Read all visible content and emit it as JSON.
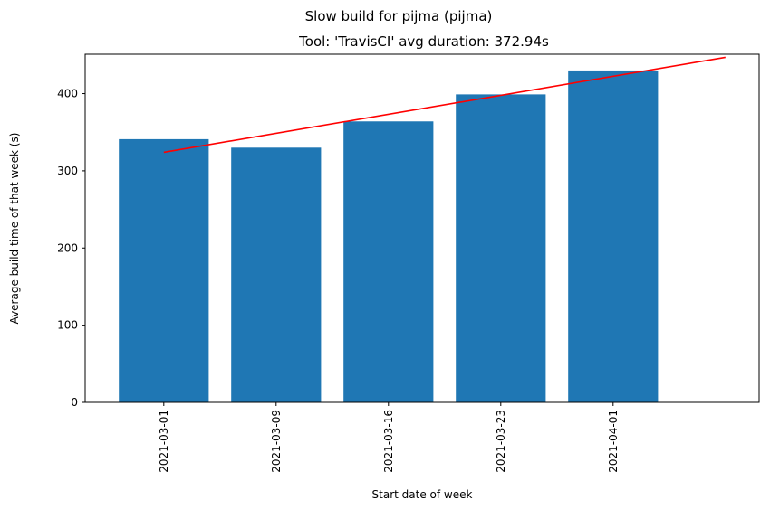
{
  "chart_data": {
    "type": "bar",
    "title": "Slow build for pijma (pijma)",
    "subtitle": "Tool: 'TravisCI' avg duration: 372.94s",
    "xlabel": "Start date of week",
    "ylabel": "Average build time of that week (s)",
    "categories": [
      "2021-03-01",
      "2021-03-09",
      "2021-03-16",
      "2021-03-23",
      "2021-04-01"
    ],
    "values": [
      341,
      330,
      364,
      399,
      430
    ],
    "yticks": [
      0,
      100,
      200,
      300,
      400
    ],
    "ylim": [
      0,
      451
    ],
    "bar_color": "#1f77b4",
    "trendline": {
      "color": "#ff0000",
      "x_start": 0,
      "x_end": 5,
      "y_start": 324,
      "y_end": 447
    },
    "grid": false
  }
}
